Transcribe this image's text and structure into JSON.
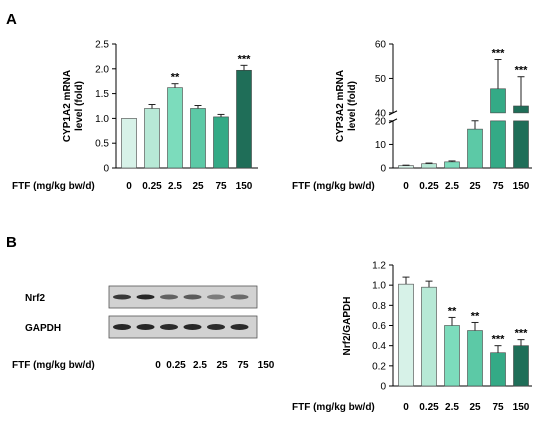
{
  "panels": {
    "a": "A",
    "b": "B"
  },
  "palette": {
    "fills": [
      "#d7f2e8",
      "#b7e9d6",
      "#7cdcbc",
      "#5cc9a6",
      "#34aa86",
      "#1f6e58"
    ],
    "stroke": "#444444",
    "axis": "#000000"
  },
  "chart_data": [
    {
      "id": "cyp1a2",
      "type": "bar",
      "ylabel": [
        "CYP1A2 mRNA",
        "level (fold)"
      ],
      "xlabel": "FTF (mg/kg bw/d)",
      "categories": [
        "0",
        "0.25",
        "2.5",
        "25",
        "75",
        "150"
      ],
      "values": [
        1.0,
        1.2,
        1.62,
        1.2,
        1.03,
        1.97
      ],
      "errors": [
        0.0,
        0.08,
        0.08,
        0.06,
        0.05,
        0.1
      ],
      "significance": [
        "",
        "",
        "**",
        "",
        "",
        "***"
      ],
      "ylim": [
        0,
        2.5
      ],
      "yticks": [
        "0",
        "0.5",
        "1.0",
        "1.5",
        "2.0",
        "2.5"
      ],
      "grid": false
    },
    {
      "id": "cyp3a2",
      "type": "bar",
      "ylabel": [
        "CYP3A2 mRNA",
        "level (fold)"
      ],
      "xlabel": "FTF (mg/kg bw/d)",
      "categories": [
        "0",
        "0.25",
        "2.5",
        "25",
        "75",
        "150"
      ],
      "values": [
        1.0,
        1.8,
        2.6,
        16.5,
        47,
        42
      ],
      "errors": [
        0.2,
        0.3,
        0.4,
        3.8,
        8.5,
        8.5
      ],
      "significance": [
        "",
        "",
        "",
        "",
        "***",
        "***"
      ],
      "ylim": [
        0,
        60
      ],
      "axis_break": [
        20,
        40
      ],
      "yticks": [
        "0",
        "10",
        "20",
        "40",
        "50",
        "60"
      ],
      "grid": false
    },
    {
      "id": "nrf2",
      "type": "bar",
      "ylabel": [
        "Nrf2/GAPDH"
      ],
      "xlabel": "FTF (mg/kg bw/d)",
      "categories": [
        "0",
        "0.25",
        "2.5",
        "25",
        "75",
        "150"
      ],
      "values": [
        1.01,
        0.98,
        0.6,
        0.55,
        0.33,
        0.4
      ],
      "errors": [
        0.07,
        0.06,
        0.08,
        0.08,
        0.07,
        0.06
      ],
      "significance": [
        "",
        "",
        "**",
        "**",
        "***",
        "***"
      ],
      "ylim": [
        0,
        1.2
      ],
      "yticks": [
        "0",
        "0.2",
        "0.4",
        "0.6",
        "0.8",
        "1.0",
        "1.2"
      ],
      "grid": false
    }
  ],
  "blot": {
    "rows": [
      "Nrf2",
      "GAPDH"
    ],
    "xlabel": "FTF (mg/kg bw/d)",
    "lanes": [
      "0",
      "0.25",
      "2.5",
      "25",
      "75",
      "150"
    ],
    "nrf2_intensity": [
      0.85,
      0.95,
      0.6,
      0.65,
      0.45,
      0.55
    ],
    "gapdh_intensity": [
      0.95,
      0.95,
      0.92,
      0.95,
      0.92,
      0.93
    ]
  }
}
